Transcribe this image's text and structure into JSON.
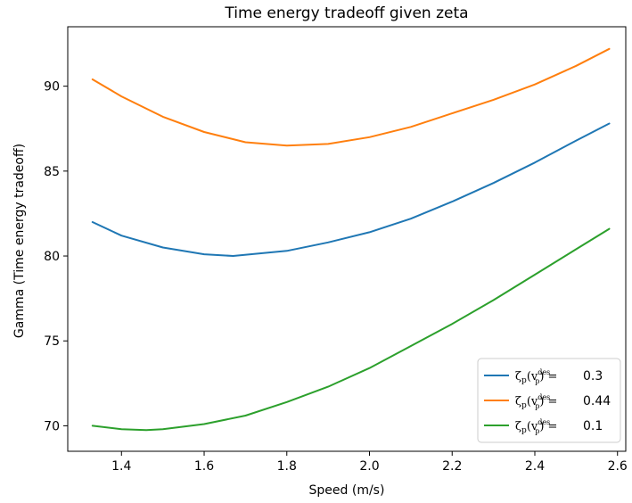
{
  "chart_data": {
    "type": "line",
    "title": "Time energy tradeoff given zeta",
    "xlabel": "Speed (m/s)",
    "ylabel": "Gamma (Time energy tradeoff)",
    "xlim": [
      1.27,
      2.62
    ],
    "ylim": [
      68.5,
      93.5
    ],
    "xticks": [
      1.4,
      1.6,
      1.8,
      2.0,
      2.2,
      2.4,
      2.6
    ],
    "xtick_labels": [
      "1.4",
      "1.6",
      "1.8",
      "2.0",
      "2.2",
      "2.4",
      "2.6"
    ],
    "yticks": [
      70,
      75,
      80,
      85,
      90
    ],
    "ytick_labels": [
      "70",
      "75",
      "80",
      "85",
      "90"
    ],
    "grid": false,
    "legend_position": "lower-right",
    "legend_symbol": "ζp(vpdes) =",
    "series": [
      {
        "name": "0.3",
        "color": "#1f77b4",
        "x": [
          1.33,
          1.4,
          1.5,
          1.6,
          1.67,
          1.8,
          1.9,
          2.0,
          2.1,
          2.2,
          2.3,
          2.4,
          2.5,
          2.58
        ],
        "y": [
          82.0,
          81.2,
          80.5,
          80.1,
          80.0,
          80.3,
          80.8,
          81.4,
          82.2,
          83.2,
          84.3,
          85.5,
          86.8,
          87.8
        ]
      },
      {
        "name": "0.44",
        "color": "#ff7f0e",
        "x": [
          1.33,
          1.4,
          1.5,
          1.6,
          1.7,
          1.8,
          1.9,
          2.0,
          2.1,
          2.2,
          2.3,
          2.4,
          2.5,
          2.58
        ],
        "y": [
          90.4,
          89.4,
          88.2,
          87.3,
          86.7,
          86.5,
          86.6,
          87.0,
          87.6,
          88.4,
          89.2,
          90.1,
          91.2,
          92.2
        ]
      },
      {
        "name": "0.1",
        "color": "#2ca02c",
        "x": [
          1.33,
          1.4,
          1.46,
          1.5,
          1.6,
          1.7,
          1.8,
          1.9,
          2.0,
          2.1,
          2.2,
          2.3,
          2.4,
          2.5,
          2.58
        ],
        "y": [
          70.0,
          69.8,
          69.75,
          69.8,
          70.1,
          70.6,
          71.4,
          72.3,
          73.4,
          74.7,
          76.0,
          77.4,
          78.9,
          80.4,
          81.6
        ]
      }
    ]
  }
}
